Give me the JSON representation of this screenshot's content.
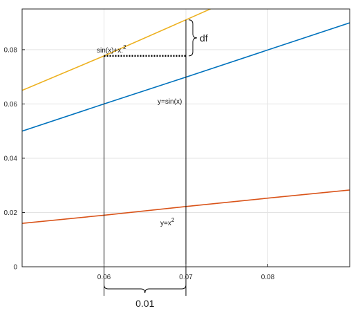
{
  "chart_data": {
    "type": "line",
    "title": "",
    "xlabel": "",
    "ylabel": "",
    "xlim": [
      0.05,
      0.09
    ],
    "ylim": [
      0,
      0.095
    ],
    "grid": true,
    "x_ticks": [
      {
        "value": 0.06,
        "label": "0.06"
      },
      {
        "value": 0.07,
        "label": "0.07"
      },
      {
        "value": 0.08,
        "label": "0.08"
      }
    ],
    "y_ticks": [
      {
        "value": 0,
        "label": "0"
      },
      {
        "value": 0.02,
        "label": "0.02"
      },
      {
        "value": 0.04,
        "label": "0.04"
      },
      {
        "value": 0.06,
        "label": "0.06"
      },
      {
        "value": 0.08,
        "label": "0.08"
      }
    ],
    "series": [
      {
        "label": "sin(x)+x.",
        "label_sup": "2",
        "color": "#EDB120",
        "x": [
          0.05,
          0.06,
          0.07,
          0.075
        ],
        "y": [
          0.065,
          0.0777,
          0.091,
          0.0977
        ]
      },
      {
        "label": "y=sin(x)",
        "label_sup": "",
        "color": "#0072BD",
        "x": [
          0.05,
          0.06,
          0.07,
          0.08,
          0.09
        ],
        "y": [
          0.05,
          0.06,
          0.0699,
          0.0799,
          0.0899
        ]
      },
      {
        "label": "y=x",
        "label_sup": "2",
        "color": "#D95319",
        "x": [
          0.05,
          0.06,
          0.07,
          0.08,
          0.09
        ],
        "y": [
          0.016,
          0.019,
          0.0222,
          0.0253,
          0.0283
        ]
      }
    ],
    "annotations": {
      "df": {
        "label": "df",
        "x": 0.07,
        "y_from": 0.0777,
        "y_to": 0.091
      },
      "dx": {
        "label": "0.01",
        "x_from": 0.06,
        "x_to": 0.07
      },
      "vertical_guides_x": [
        0.06,
        0.07
      ],
      "dotted_level": {
        "y": 0.0777,
        "x_from": 0.06,
        "x_to": 0.07
      }
    }
  }
}
